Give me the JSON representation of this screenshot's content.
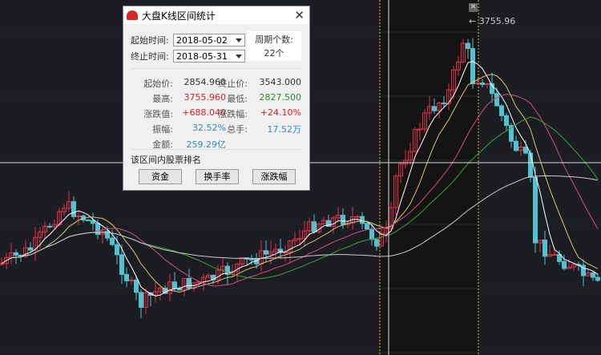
{
  "chart": {
    "peak_label": "3755.96",
    "colors": {
      "up": "#e0304a",
      "down": "#4fc3cf",
      "ma5": "#ffffff",
      "ma10": "#d8c27a",
      "ma20": "#d0507a",
      "ma30": "#3da03d",
      "ma60": "#cccccc",
      "selection": "#e0b040"
    }
  },
  "dialog": {
    "title": "大盘K线区间统计",
    "start_label": "起始时间:",
    "start_value": "2018-05-02",
    "end_label": "终止时间:",
    "end_value": "2018-05-31",
    "period_label": "周期个数:",
    "period_value": "22个",
    "stats": [
      {
        "label": "起始价:",
        "value": "2854.960",
        "color": "blk"
      },
      {
        "label": "终止价:",
        "value": "3543.000",
        "color": "blk"
      },
      {
        "label": "最高:",
        "value": "3755.960",
        "color": "red"
      },
      {
        "label": "最低:",
        "value": "2827.500",
        "color": "green"
      },
      {
        "label": "涨跌值:",
        "value": "+688.040",
        "color": "red"
      },
      {
        "label": "涨跌幅:",
        "value": "+24.10%",
        "color": "red"
      },
      {
        "label": "振幅:",
        "value": "32.52%",
        "color": "blue"
      },
      {
        "label": "总手:",
        "value": "17.52万",
        "color": "blue"
      },
      {
        "label": "金额:",
        "value": "259.29亿",
        "color": "blue"
      }
    ],
    "ranking_title": "该区间内股票排名",
    "buttons": [
      "资金",
      "换手率",
      "涨跌幅"
    ]
  }
}
